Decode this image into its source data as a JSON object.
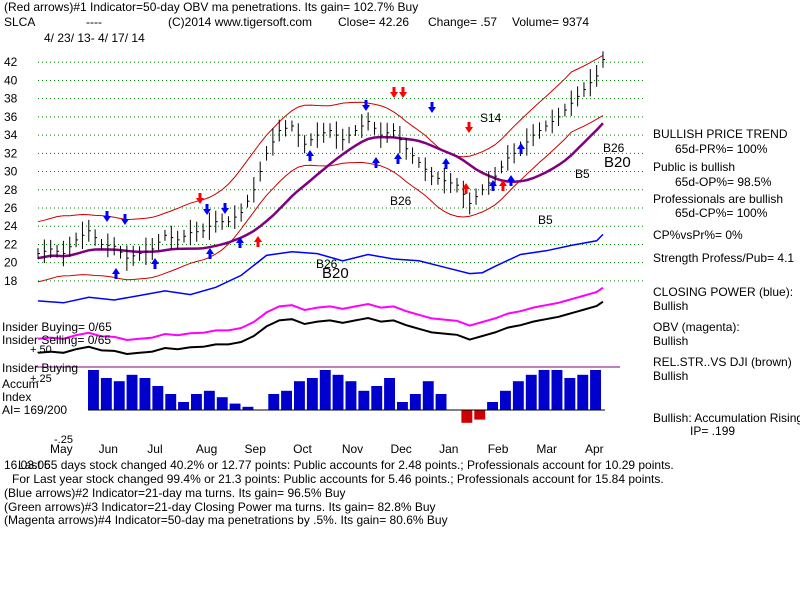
{
  "header": {
    "line1": "(Red arrows)#1 Indicator=50-day OBV ma penetrations. Its gain= 102.7% Buy",
    "symbol": "SLCA",
    "dashes": "----",
    "copyright": "(C)2014 www.tigersoft.com",
    "close": "Close= 42.26",
    "change": "Change= .57",
    "volume": "Volume= 9374",
    "date_range": "4/ 23/ 13- 4/ 17/ 14"
  },
  "right_panel": {
    "trend_title": "BULLISH PRICE TREND",
    "pr_pct": "65d-PR%= 100%",
    "public_title": "Public is bullish",
    "op_pct": "65d-OP%= 98.5%",
    "professionals_title": "Professionals are bullish",
    "cp_pct": "65d-CP%= 100%",
    "cp_vs_pr": "CP%vsPr%= 0%",
    "strength": "Strength Profess/Pub= 4.1",
    "closing_power_title": "CLOSING POWER (blue):",
    "closing_power_value": "Bullish",
    "obv_title": "OBV (magenta):",
    "obv_value": "Bullish",
    "relstr_title": "REL.STR..VS DJI (brown)",
    "relstr_value": "Bullish",
    "accum_title": "Bullish: Accumulation Rising",
    "ip": "IP= .199"
  },
  "left_labels": {
    "insider_buying": "Insider Buying= 0/65",
    "insider_selling": "Insider Selling= 0/65",
    "plus50": "+.50",
    "insider_buying2": "Insider Buying",
    "plus25": "+.25",
    "accum": "Accum",
    "index": "Index",
    "ai": "AI= 169/200",
    "minus25": "-.25"
  },
  "footer": {
    "line1": "Last 65 days stock changed  40.2% or  12.77 points:  Public accounts for  2.48 points.;  Professionals account for  10.29 points.",
    "overlap": "16.03.05",
    "line2": "For Last year stock changed  99.4% or  21.3 points:  Public accounts for  5.46 points.;  Professionals account for  15.84 points.",
    "line3": "(Blue arrows)#2 Indicator=21-day ma turns. Its gain= 96.5% Buy",
    "line4": "(Green arrows)#3 Indicator=21-day Closing Power ma turns. Its gain= 82.8% Buy",
    "line5": "(Magenta arrows)#4 Indicator=50-day ma penetrations by .5%. Its gain= 80.6% Buy"
  },
  "chart_data": {
    "type": "line",
    "title": "SLCA",
    "y_ticks": [
      18,
      20,
      22,
      24,
      26,
      28,
      30,
      32,
      34,
      36,
      38,
      40,
      42
    ],
    "ylim": [
      17,
      44
    ],
    "months": [
      "May",
      "Jun",
      "Jul",
      "Aug",
      "Sep",
      "Oct",
      "Nov",
      "Dec",
      "Jan",
      "Feb",
      "Mar",
      "Apr"
    ],
    "colors": {
      "price": "#000000",
      "ma21": "#cc0000",
      "ma50": "#800080",
      "closing_power": "#0000ff",
      "obv": "#ff00ff",
      "accum": "#0000cc",
      "accum_neg": "#cc0000",
      "blue_arrow": "#0000ff",
      "red_arrow": "#ff0000",
      "grid": "#008000"
    },
    "price_path": [
      [
        0,
        21
      ],
      [
        2,
        21.5
      ],
      [
        4,
        21
      ],
      [
        6,
        22.5
      ],
      [
        8,
        23.5
      ],
      [
        10,
        22
      ],
      [
        12,
        21.8
      ],
      [
        14,
        20.5
      ],
      [
        16,
        21
      ],
      [
        18,
        21.5
      ],
      [
        20,
        23
      ],
      [
        22,
        22.5
      ],
      [
        24,
        23.3
      ],
      [
        26,
        23.5
      ],
      [
        28,
        24.5
      ],
      [
        30,
        24.5
      ],
      [
        32,
        25.5
      ],
      [
        34,
        28
      ],
      [
        36,
        32
      ],
      [
        38,
        34.5
      ],
      [
        40,
        35
      ],
      [
        42,
        33
      ],
      [
        44,
        34
      ],
      [
        46,
        34.5
      ],
      [
        48,
        33.5
      ],
      [
        50,
        34.5
      ],
      [
        52,
        35.5
      ],
      [
        54,
        34
      ],
      [
        56,
        34.5
      ],
      [
        58,
        32.5
      ],
      [
        60,
        31
      ],
      [
        62,
        29.5
      ],
      [
        64,
        29
      ],
      [
        66,
        28.5
      ],
      [
        68,
        26.5
      ],
      [
        70,
        28
      ],
      [
        72,
        29.5
      ],
      [
        74,
        31.5
      ],
      [
        76,
        32.5
      ],
      [
        78,
        34
      ],
      [
        80,
        35
      ],
      [
        82,
        36
      ],
      [
        84,
        37.5
      ],
      [
        86,
        39
      ],
      [
        88,
        40.5
      ],
      [
        89,
        42.3
      ]
    ],
    "closing_power_path": [
      [
        0,
        15.8
      ],
      [
        4,
        15.6
      ],
      [
        8,
        16.2
      ],
      [
        12,
        15.9
      ],
      [
        16,
        16.4
      ],
      [
        20,
        16.9
      ],
      [
        24,
        16.5
      ],
      [
        28,
        17.3
      ],
      [
        32,
        18.6
      ],
      [
        36,
        20.8
      ],
      [
        40,
        21.2
      ],
      [
        44,
        21
      ],
      [
        48,
        20.2
      ],
      [
        52,
        20.9
      ],
      [
        56,
        20.4
      ],
      [
        60,
        20.2
      ],
      [
        64,
        19.5
      ],
      [
        68,
        18.8
      ],
      [
        70,
        18.9
      ],
      [
        72,
        19.6
      ],
      [
        76,
        20.9
      ],
      [
        80,
        21.3
      ],
      [
        84,
        21.9
      ],
      [
        88,
        22.4
      ],
      [
        89,
        23.1
      ]
    ],
    "accum_values": [
      0.25,
      0.2,
      0.18,
      0.22,
      0.2,
      0.15,
      0.1,
      0.05,
      0.1,
      0.12,
      0.08,
      0.04,
      0.02,
      0.0,
      0.1,
      0.12,
      0.18,
      0.2,
      0.25,
      0.22,
      0.18,
      0.12,
      0.15,
      0.2,
      0.05,
      0.1,
      0.18,
      0.1,
      0.0,
      -0.08,
      -0.06,
      0.05,
      0.12,
      0.18,
      0.22,
      0.25,
      0.25,
      0.2,
      0.22,
      0.25
    ],
    "annotations": [
      "S14",
      "B26",
      "B26",
      "B20",
      "B26",
      "B20",
      "B5",
      "B5"
    ]
  }
}
